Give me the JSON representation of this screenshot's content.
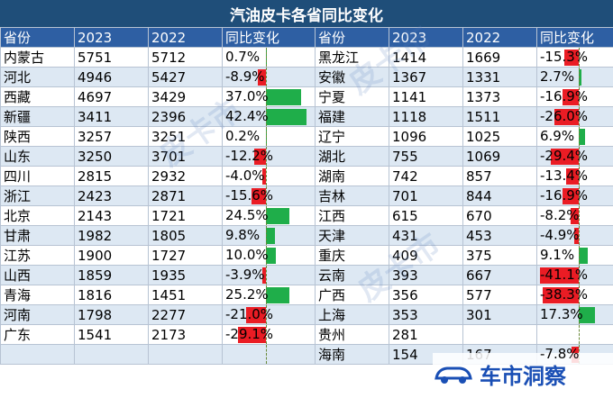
{
  "title": "汽油皮卡各省同比变化",
  "headers": [
    "省份",
    "2023",
    "2022",
    "同比变化",
    "省份",
    "2023",
    "2022",
    "同比变化"
  ],
  "left_rows": [
    {
      "province": "内蒙古",
      "y2023": "5751",
      "y2022": "5712",
      "change": "0.7%",
      "pct": 0.7
    },
    {
      "province": "河北",
      "y2023": "4946",
      "y2022": "5427",
      "change": "-8.9%",
      "pct": -8.9
    },
    {
      "province": "西藏",
      "y2023": "4697",
      "y2022": "3429",
      "change": "37.0%",
      "pct": 37.0
    },
    {
      "province": "新疆",
      "y2023": "3411",
      "y2022": "2396",
      "change": "42.4%",
      "pct": 42.4
    },
    {
      "province": "陕西",
      "y2023": "3257",
      "y2022": "3251",
      "change": "0.2%",
      "pct": 0.2
    },
    {
      "province": "山东",
      "y2023": "3250",
      "y2022": "3701",
      "change": "-12.2%",
      "pct": -12.2
    },
    {
      "province": "四川",
      "y2023": "2815",
      "y2022": "2932",
      "change": "-4.0%",
      "pct": -4.0
    },
    {
      "province": "浙江",
      "y2023": "2423",
      "y2022": "2871",
      "change": "-15.6%",
      "pct": -15.6
    },
    {
      "province": "北京",
      "y2023": "2143",
      "y2022": "1721",
      "change": "24.5%",
      "pct": 24.5
    },
    {
      "province": "甘肃",
      "y2023": "1982",
      "y2022": "1805",
      "change": "9.8%",
      "pct": 9.8
    },
    {
      "province": "江苏",
      "y2023": "1900",
      "y2022": "1727",
      "change": "10.0%",
      "pct": 10.0
    },
    {
      "province": "山西",
      "y2023": "1859",
      "y2022": "1935",
      "change": "-3.9%",
      "pct": -3.9
    },
    {
      "province": "青海",
      "y2023": "1816",
      "y2022": "1451",
      "change": "25.2%",
      "pct": 25.2
    },
    {
      "province": "河南",
      "y2023": "1798",
      "y2022": "2277",
      "change": "-21.0%",
      "pct": -21.0
    },
    {
      "province": "广东",
      "y2023": "1541",
      "y2022": "2173",
      "change": "-29.1%",
      "pct": -29.1
    },
    {
      "province": "",
      "y2023": "",
      "y2022": "",
      "change": "",
      "pct": null
    }
  ],
  "right_rows": [
    {
      "province": "黑龙江",
      "y2023": "1414",
      "y2022": "1669",
      "change": "-15.3%",
      "pct": -15.3
    },
    {
      "province": "安徽",
      "y2023": "1367",
      "y2022": "1331",
      "change": "2.7%",
      "pct": 2.7
    },
    {
      "province": "宁夏",
      "y2023": "1141",
      "y2022": "1373",
      "change": "-16.9%",
      "pct": -16.9
    },
    {
      "province": "福建",
      "y2023": "1118",
      "y2022": "1511",
      "change": "-26.0%",
      "pct": -26.0
    },
    {
      "province": "辽宁",
      "y2023": "1096",
      "y2022": "1025",
      "change": "6.9%",
      "pct": 6.9
    },
    {
      "province": "湖北",
      "y2023": "755",
      "y2022": "1069",
      "change": "-29.4%",
      "pct": -29.4
    },
    {
      "province": "湖南",
      "y2023": "742",
      "y2022": "857",
      "change": "-13.4%",
      "pct": -13.4
    },
    {
      "province": "吉林",
      "y2023": "701",
      "y2022": "844",
      "change": "-16.9%",
      "pct": -16.9
    },
    {
      "province": "江西",
      "y2023": "615",
      "y2022": "670",
      "change": "-8.2%",
      "pct": -8.2
    },
    {
      "province": "天津",
      "y2023": "431",
      "y2022": "453",
      "change": "-4.9%",
      "pct": -4.9
    },
    {
      "province": "重庆",
      "y2023": "409",
      "y2022": "375",
      "change": "9.1%",
      "pct": 9.1
    },
    {
      "province": "云南",
      "y2023": "393",
      "y2022": "667",
      "change": "-41.1%",
      "pct": -41.1
    },
    {
      "province": "广西",
      "y2023": "356",
      "y2022": "577",
      "change": "-38.3%",
      "pct": -38.3
    },
    {
      "province": "上海",
      "y2023": "353",
      "y2022": "301",
      "change": "17.3%",
      "pct": 17.3
    },
    {
      "province": "贵州",
      "y2023": "281",
      "y2022": "",
      "change": "",
      "pct": null
    },
    {
      "province": "海南",
      "y2023": "154",
      "y2022": "167",
      "change": "-7.8%",
      "pct": -7.8
    }
  ],
  "colors": {
    "positive": "#1fae4a",
    "negative": "#ea1c24",
    "header": "#2e5fa3",
    "title_bg": "#1f4e79"
  },
  "logo": {
    "text": "车市洞察",
    "icon": "car-icon"
  }
}
